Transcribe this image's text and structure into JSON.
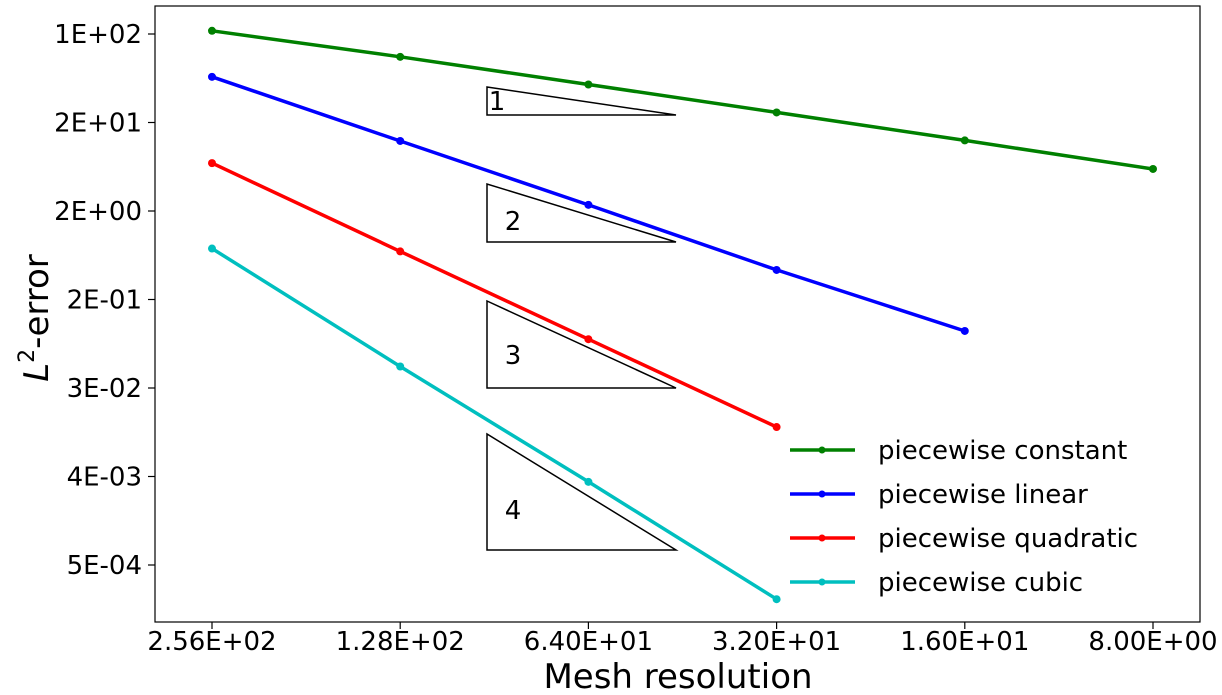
{
  "chart_data": {
    "type": "line",
    "xlabel": "Mesh resolution",
    "ylabel_main": "L",
    "ylabel_sup": "2",
    "ylabel_rest": "-error",
    "x_scale": "log",
    "x_reversed": true,
    "y_scale": "log",
    "grid": false,
    "legend_position": "lower right",
    "x_ticks": [
      "2.56E+02",
      "1.28E+02",
      "6.40E+01",
      "3.20E+01",
      "1.60E+01",
      "8.00E+00"
    ],
    "x_tick_values": [
      256,
      128,
      64,
      32,
      16,
      8
    ],
    "y_ticks": [
      "1E+02",
      "2E+01",
      "2E+00",
      "2E-01",
      "3E-02",
      "4E-03",
      "5E-04"
    ],
    "xlim": [
      256,
      8
    ],
    "series": [
      {
        "name": "piecewise constant",
        "color": "#008000",
        "x": [
          256,
          128,
          64,
          32,
          16,
          8
        ],
        "y": [
          108,
          58,
          30,
          15.4,
          7.9,
          4.0
        ]
      },
      {
        "name": "piecewise linear",
        "color": "#0000ff",
        "x": [
          256,
          128,
          64,
          32,
          16
        ],
        "y": [
          36,
          7.8,
          1.7,
          0.36,
          0.084
        ]
      },
      {
        "name": "piecewise quadratic",
        "color": "#ff0000",
        "x": [
          256,
          128,
          64,
          32
        ],
        "y": [
          4.6,
          0.56,
          0.069,
          0.0085
        ]
      },
      {
        "name": "piecewise cubic",
        "color": "#00bfbf",
        "x": [
          256,
          128,
          64,
          32
        ],
        "y": [
          0.6,
          0.036,
          0.0023,
          0.00014
        ]
      }
    ],
    "slope_triangles": [
      {
        "label": "1",
        "slope": 1
      },
      {
        "label": "2",
        "slope": 2
      },
      {
        "label": "3",
        "slope": 3
      },
      {
        "label": "4",
        "slope": 4
      }
    ]
  }
}
